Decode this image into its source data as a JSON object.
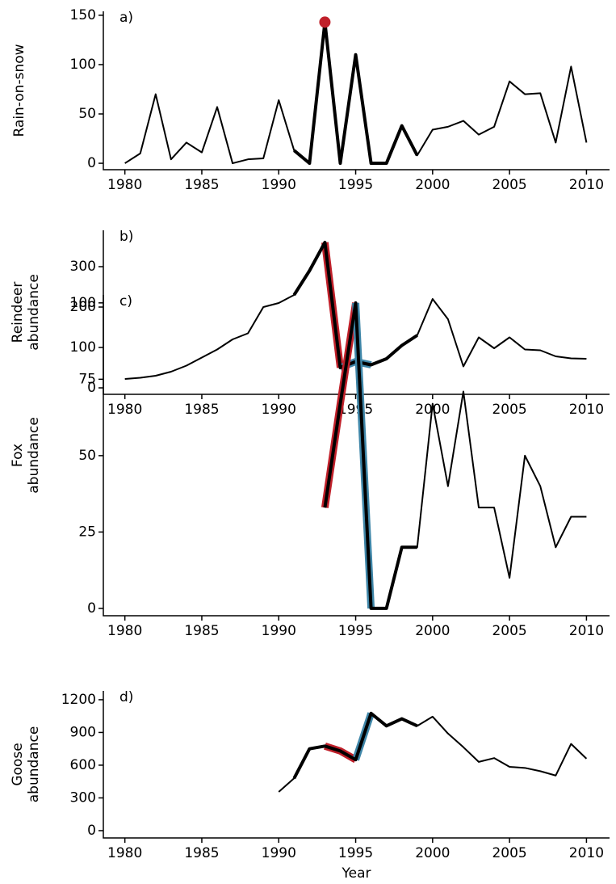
{
  "chart_data": [
    {
      "type": "line",
      "panel_label": "a)",
      "ylabel": [
        "Rain-on-snow"
      ],
      "x": [
        1980,
        1981,
        1982,
        1983,
        1984,
        1985,
        1986,
        1987,
        1988,
        1989,
        1990,
        1991,
        1992,
        1993,
        1994,
        1995,
        1996,
        1997,
        1998,
        1999,
        2000,
        2001,
        2002,
        2003,
        2004,
        2005,
        2006,
        2007,
        2008,
        2009,
        2010
      ],
      "series": [
        {
          "color": "#000000",
          "values": [
            0,
            10,
            70,
            4,
            21,
            11,
            57,
            0,
            4,
            5,
            64,
            13,
            0,
            143,
            0,
            110,
            0,
            0,
            38,
            8,
            34,
            37,
            43,
            29,
            37,
            83,
            70,
            71,
            21,
            98,
            21
          ]
        }
      ],
      "xlim": [
        1978.6,
        2011.5
      ],
      "ylim": [
        -6.5,
        154
      ],
      "xticks": [
        1980,
        1985,
        1990,
        1995,
        2000,
        2005,
        2010
      ],
      "yticks": [
        0,
        50,
        100,
        150
      ],
      "thick_range": [
        1991,
        1999
      ],
      "highlights": [],
      "marker": {
        "x": 1993,
        "color": "#c0202a"
      }
    },
    {
      "type": "line",
      "panel_label": "b)",
      "ylabel": [
        "Reindeer",
        "abundance"
      ],
      "x": [
        1980,
        1981,
        1982,
        1983,
        1984,
        1985,
        1986,
        1987,
        1988,
        1989,
        1990,
        1991,
        1992,
        1993,
        1994,
        1995,
        1996,
        1997,
        1998,
        1999,
        2000,
        2001,
        2002,
        2003,
        2004,
        2005,
        2006,
        2007,
        2008,
        2009,
        2010
      ],
      "series": [
        {
          "color": "#000000",
          "values": [
            22,
            25,
            30,
            40,
            55,
            75,
            95,
            120,
            135,
            200,
            210,
            230,
            290,
            360,
            50,
            65,
            57,
            72,
            105,
            130,
            220,
            170,
            53,
            125,
            98,
            125,
            95,
            93,
            78,
            73,
            72
          ]
        }
      ],
      "xlim": [
        1978.6,
        2011.5
      ],
      "ylim": [
        -16,
        390
      ],
      "xticks": [
        1980,
        1985,
        1990,
        1995,
        2000,
        2005,
        2010
      ],
      "yticks": [
        0,
        100,
        200,
        300
      ],
      "thick_range": [
        1991,
        1999
      ],
      "highlights": [
        {
          "color": "#c0202a",
          "range": [
            1993,
            1994
          ]
        },
        {
          "color": "#3f86a8",
          "range": [
            1994,
            1996
          ]
        }
      ]
    },
    {
      "type": "line",
      "panel_label": "c)",
      "ylabel": [
        "Fox",
        "abundance"
      ],
      "x": [
        1980,
        1981,
        1982,
        1983,
        1984,
        1985,
        1986,
        1987,
        1988,
        1989,
        1990,
        1991,
        1992,
        1993,
        1994,
        1995,
        1996,
        1997,
        1998,
        1999,
        2000,
        2001,
        2002,
        2003,
        2004,
        2005,
        2006,
        2007,
        2008,
        2009,
        2010
      ],
      "series": [
        {
          "color": "#000000",
          "values": [
            null,
            null,
            null,
            null,
            null,
            null,
            null,
            null,
            null,
            null,
            null,
            null,
            null,
            33,
            67,
            100,
            0,
            0,
            20,
            20,
            67,
            40,
            71,
            33,
            33,
            10,
            50,
            40,
            20,
            30,
            30
          ]
        }
      ],
      "xlim": [
        1978.6,
        2011.5
      ],
      "ylim": [
        -2.4,
        102.6
      ],
      "xticks": [
        1980,
        1985,
        1990,
        1995,
        2000,
        2005,
        2010
      ],
      "yticks": [
        0,
        25,
        50,
        75,
        100
      ],
      "thick_range": [
        1993,
        1999
      ],
      "highlights": [
        {
          "color": "#c0202a",
          "range": [
            1993,
            1995
          ]
        },
        {
          "color": "#3f86a8",
          "range": [
            1995,
            1996
          ]
        }
      ]
    },
    {
      "type": "line",
      "panel_label": "d)",
      "ylabel": [
        "Goose",
        "abundance"
      ],
      "xlabel": "Year",
      "x": [
        1980,
        1981,
        1982,
        1983,
        1984,
        1985,
        1986,
        1987,
        1988,
        1989,
        1990,
        1991,
        1992,
        1993,
        1994,
        1995,
        1996,
        1997,
        1998,
        1999,
        2000,
        2001,
        2002,
        2003,
        2004,
        2005,
        2006,
        2007,
        2008,
        2009,
        2010
      ],
      "series": [
        {
          "color": "#000000",
          "values": [
            null,
            null,
            null,
            null,
            null,
            null,
            null,
            null,
            null,
            null,
            355,
            480,
            750,
            775,
            730,
            650,
            1075,
            960,
            1025,
            960,
            1045,
            890,
            765,
            630,
            665,
            585,
            575,
            545,
            505,
            795,
            660
          ]
        }
      ],
      "xlim": [
        1978.6,
        2011.5
      ],
      "ylim": [
        -67,
        1281
      ],
      "xticks": [
        1980,
        1985,
        1990,
        1995,
        2000,
        2005,
        2010
      ],
      "yticks": [
        0,
        300,
        600,
        900,
        1200
      ],
      "thick_range": [
        1991,
        1999
      ],
      "highlights": [
        {
          "color": "#c0202a",
          "range": [
            1993,
            1995
          ]
        },
        {
          "color": "#3f86a8",
          "range": [
            1995,
            1996
          ]
        }
      ]
    }
  ]
}
